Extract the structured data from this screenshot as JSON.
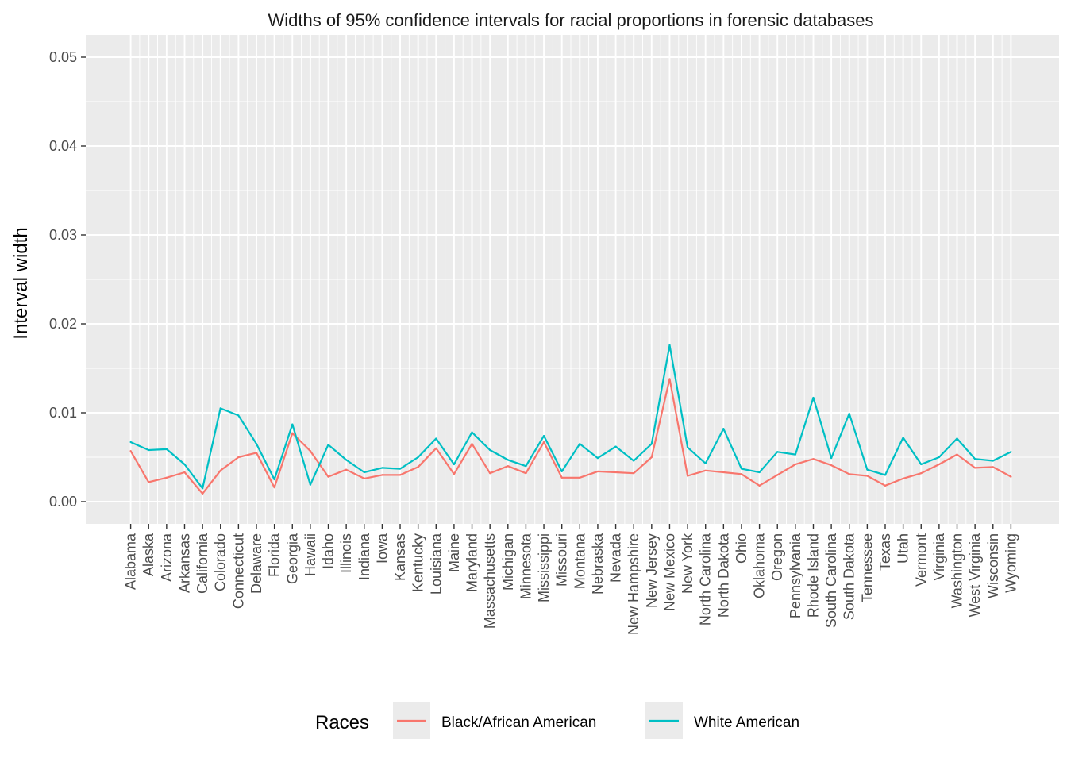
{
  "chart_data": {
    "type": "line",
    "title": "Widths of 95% confidence intervals for racial proportions in forensic databases",
    "xlabel": "",
    "ylabel": "Interval width",
    "ylim": [
      -0.0025,
      0.0525
    ],
    "yticks": [
      0.0,
      0.01,
      0.02,
      0.03,
      0.04,
      0.05
    ],
    "ytick_labels": [
      "0.00",
      "0.01",
      "0.02",
      "0.03",
      "0.04",
      "0.05"
    ],
    "grid": true,
    "legend_title": "Races",
    "legend_position": "bottom",
    "categories": [
      "Alabama",
      "Alaska",
      "Arizona",
      "Arkansas",
      "California",
      "Colorado",
      "Connecticut",
      "Delaware",
      "Florida",
      "Georgia",
      "Hawaii",
      "Idaho",
      "Illinois",
      "Indiana",
      "Iowa",
      "Kansas",
      "Kentucky",
      "Louisiana",
      "Maine",
      "Maryland",
      "Massachusetts",
      "Michigan",
      "Minnesota",
      "Mississippi",
      "Missouri",
      "Montana",
      "Nebraska",
      "Nevada",
      "New Hampshire",
      "New Jersey",
      "New Mexico",
      "New York",
      "North Carolina",
      "North Dakota",
      "Ohio",
      "Oklahoma",
      "Oregon",
      "Pennsylvania",
      "Rhode Island",
      "South Carolina",
      "South Dakota",
      "Tennessee",
      "Texas",
      "Utah",
      "Vermont",
      "Virginia",
      "Washington",
      "West Virginia",
      "Wisconsin",
      "Wyoming"
    ],
    "series": [
      {
        "name": "Black/African American",
        "color": "#F8766D",
        "values": [
          0.0057,
          0.0022,
          0.0027,
          0.0033,
          0.0009,
          0.0035,
          0.005,
          0.0055,
          0.0016,
          0.0077,
          0.0057,
          0.0028,
          0.0036,
          0.0026,
          0.003,
          0.003,
          0.0039,
          0.006,
          0.0031,
          0.0065,
          0.0032,
          0.004,
          0.0032,
          0.0067,
          0.0027,
          0.0027,
          0.0034,
          0.0033,
          0.0032,
          0.005,
          0.0138,
          0.0029,
          0.0035,
          0.0033,
          0.0031,
          0.0018,
          0.003,
          0.0042,
          0.0048,
          0.0041,
          0.0031,
          0.0029,
          0.0018,
          0.0026,
          0.0032,
          0.0042,
          0.0053,
          0.0038,
          0.0039,
          0.0028
        ]
      },
      {
        "name": "White American",
        "color": "#00BFC4",
        "values": [
          0.0067,
          0.0058,
          0.0059,
          0.0042,
          0.0015,
          0.0105,
          0.0097,
          0.0065,
          0.0025,
          0.0087,
          0.0019,
          0.0064,
          0.0047,
          0.0033,
          0.0038,
          0.0037,
          0.005,
          0.0071,
          0.0042,
          0.0078,
          0.0058,
          0.0047,
          0.004,
          0.0074,
          0.0034,
          0.0065,
          0.0049,
          0.0062,
          0.0046,
          0.0065,
          0.0176,
          0.0061,
          0.0043,
          0.0082,
          0.0037,
          0.0033,
          0.0056,
          0.0053,
          0.0117,
          0.0049,
          0.0099,
          0.0036,
          0.003,
          0.0072,
          0.0042,
          0.005,
          0.0071,
          0.0048,
          0.0046,
          0.0056
        ]
      }
    ]
  }
}
